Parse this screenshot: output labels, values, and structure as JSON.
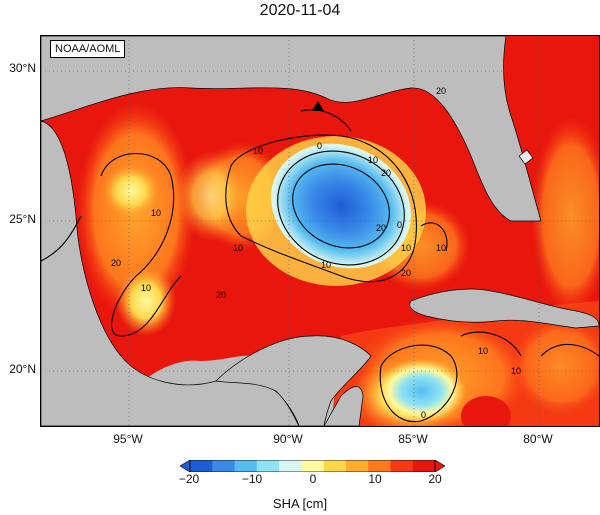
{
  "title": "2020-11-04",
  "credit": "NOAA/AOML",
  "lat_labels": [
    "30°N",
    "25°N",
    "20°N"
  ],
  "lon_labels": [
    "95°W",
    "90°W",
    "85°W",
    "80°W"
  ],
  "colorbar": {
    "ticks": [
      "−20",
      "−10",
      "0",
      "10",
      "20"
    ],
    "title": "SHA [cm]",
    "colors": [
      "#1e5cd6",
      "#3a8ae8",
      "#56bcf0",
      "#8fe3f2",
      "#d7f6f2",
      "#fff9a0",
      "#ffd84a",
      "#ffad2e",
      "#ff7a1e",
      "#f53a13",
      "#e8160d"
    ]
  },
  "contour_labels": [
    "20",
    "10",
    "0",
    "10",
    "20",
    "20",
    "10",
    "10",
    "20",
    "20",
    "10",
    "10",
    "0",
    "10",
    "10",
    "20",
    "10",
    "0",
    "10"
  ],
  "marker": "triangle"
}
